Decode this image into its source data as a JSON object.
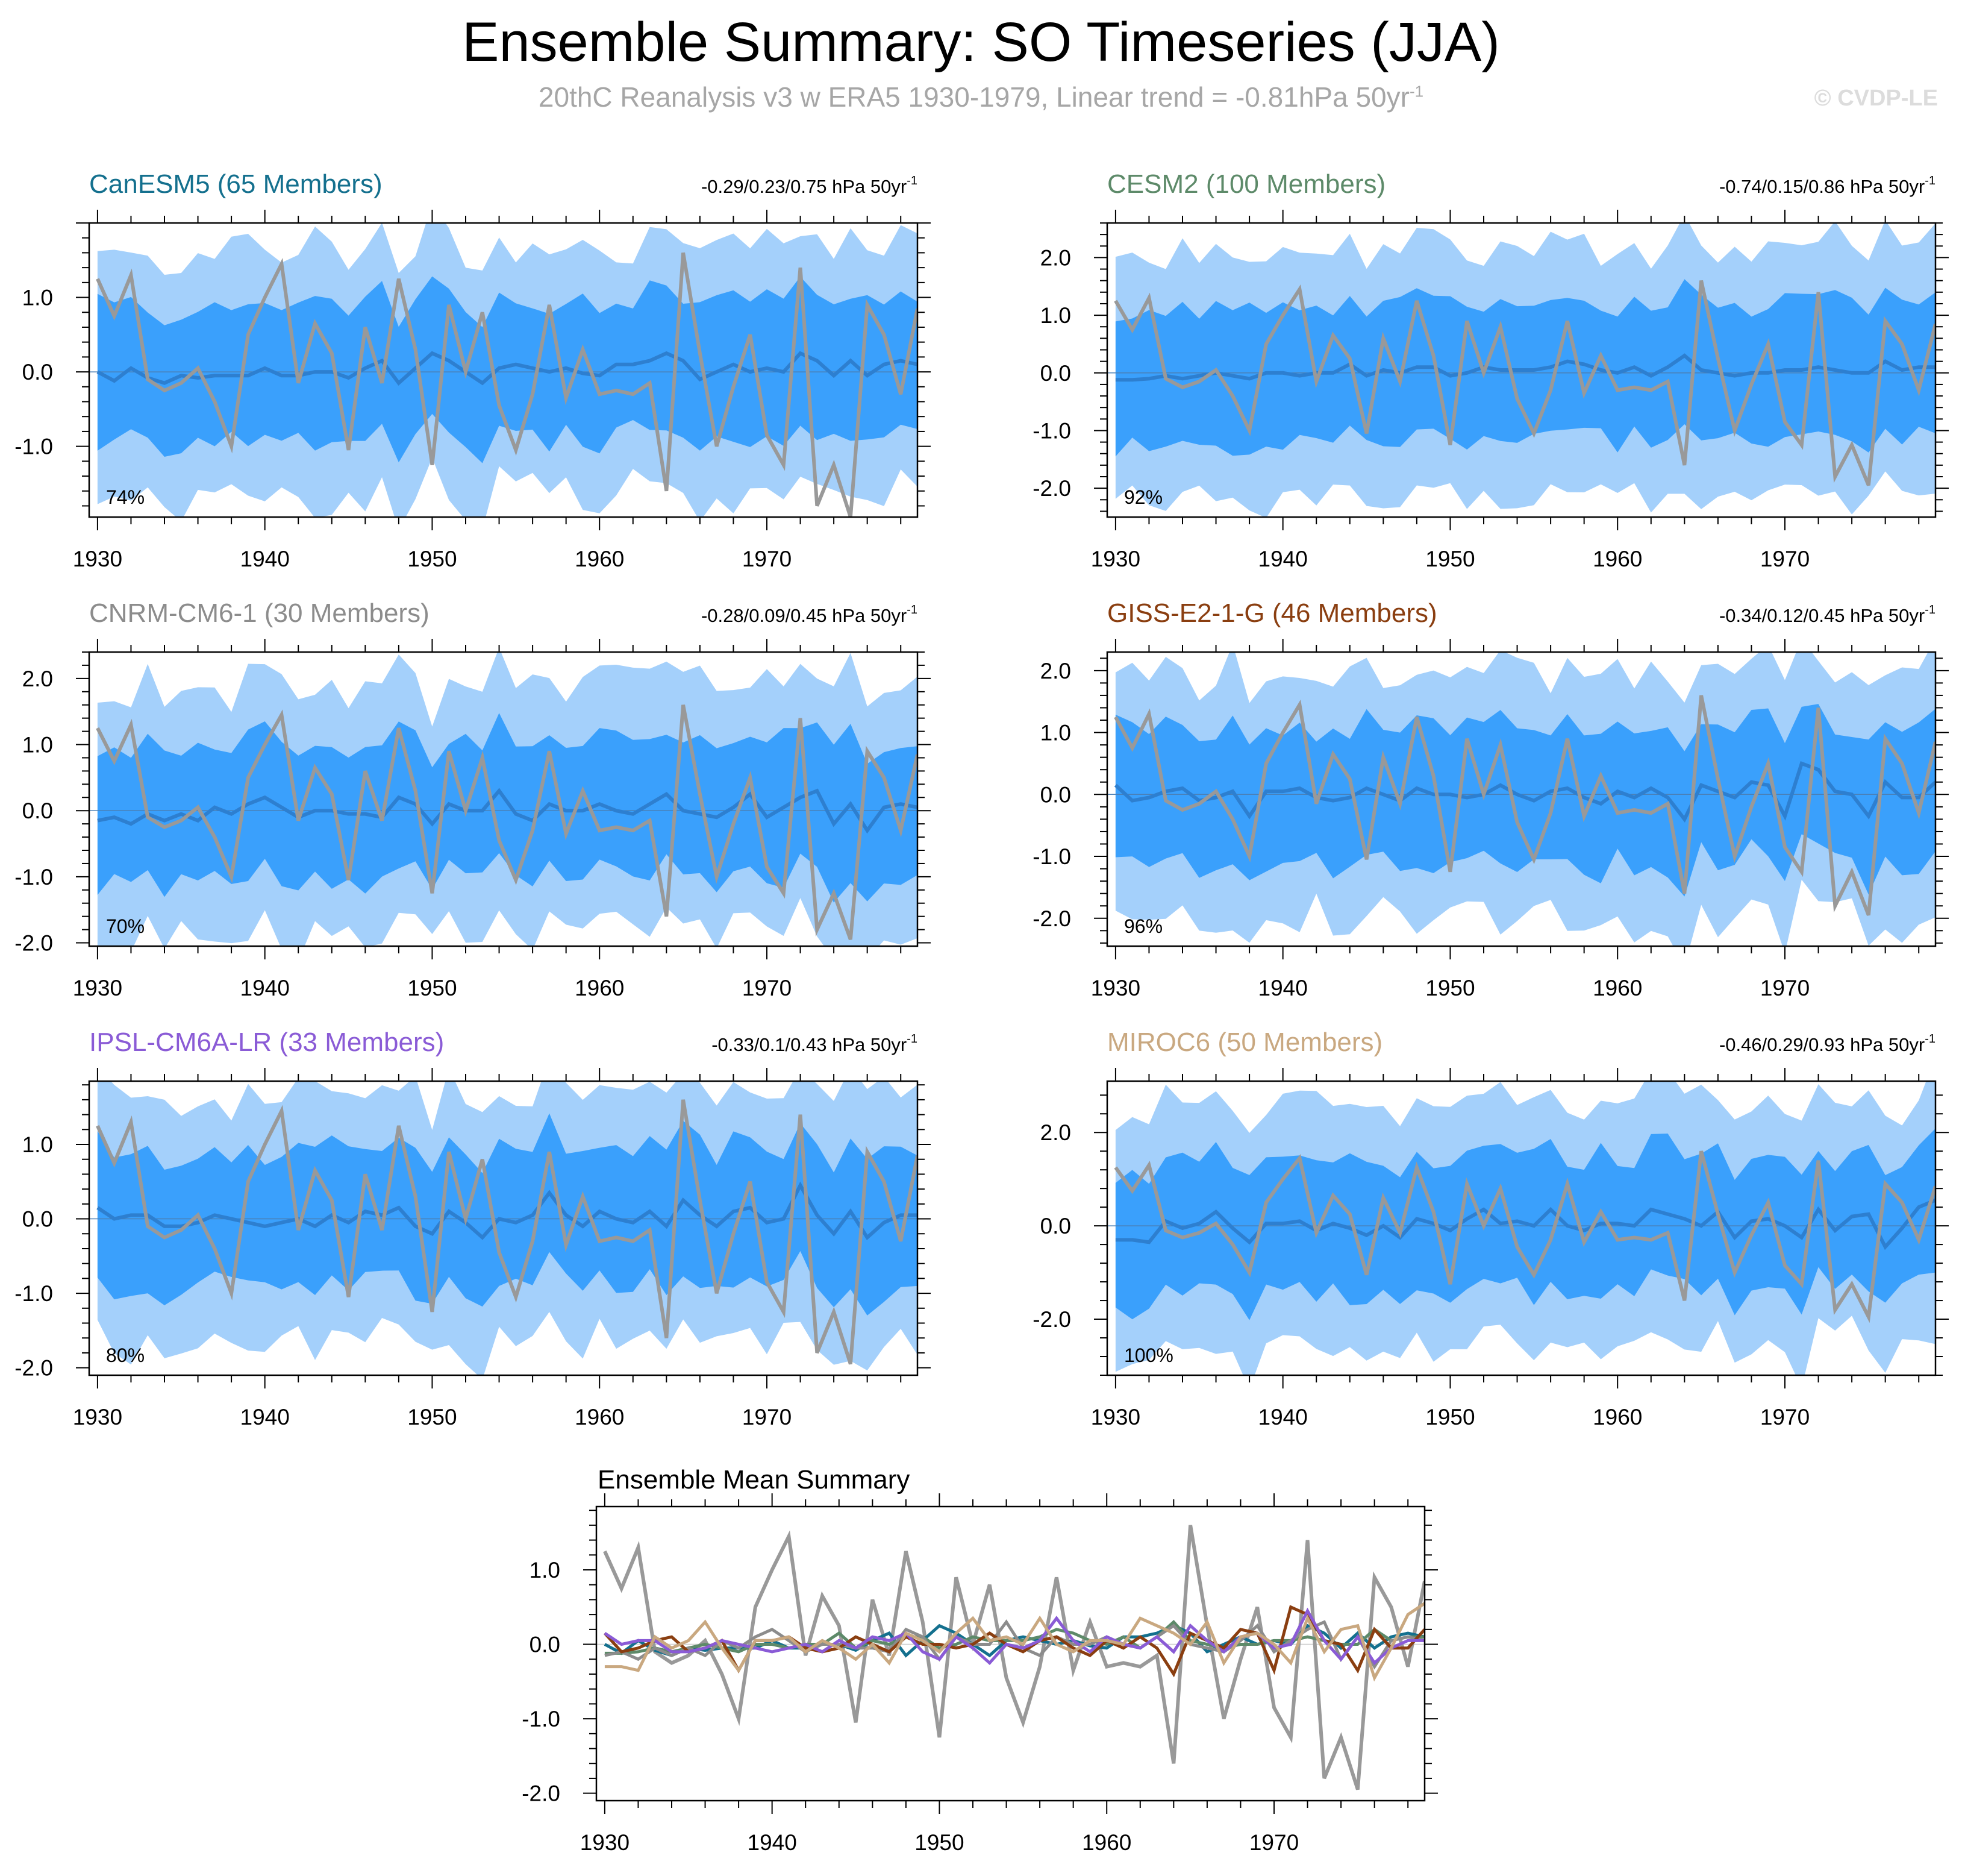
{
  "title": "Ensemble Summary: SO Timeseries (JJA)",
  "subtitle": "20thC Reanalysis v3 w ERA5 1930-1979, Linear trend = -0.81hPa 50yr",
  "subtitle_sup": "-1",
  "credit": "© CVDP-LE",
  "trend_unit": "hPa 50yr",
  "trend_unit_sup": "-1",
  "colors": {
    "outer_band": "#a4d0fb",
    "inner_band": "#3aa0fc",
    "ensemble_mean": "#2d7fd0",
    "observed": "#999999"
  },
  "chart_data": [
    {
      "type": "area",
      "model": "CanESM5 (65 Members)",
      "color": "#14708e",
      "trend": "-0.29/0.23/0.75",
      "percent": "74%",
      "ylim": [
        -1.95,
        2.0
      ],
      "yticks": [
        "1.0",
        "0.0",
        "-1.0"
      ],
      "ytick_values": [
        1,
        0,
        -1
      ],
      "xticks": [
        "1930",
        "1940",
        "1950",
        "1960",
        "1970"
      ],
      "xlim": [
        1929.5,
        1979
      ]
    },
    {
      "type": "area",
      "model": "CESM2 (100 Members)",
      "color": "#5d8a69",
      "trend": "-0.74/0.15/0.86",
      "percent": "92%",
      "ylim": [
        -2.5,
        2.6
      ],
      "yticks": [
        "2.0",
        "1.0",
        "0.0",
        "-1.0",
        "-2.0"
      ],
      "ytick_values": [
        2,
        1,
        0,
        -1,
        -2
      ],
      "xticks": [
        "1930",
        "1940",
        "1950",
        "1960",
        "1970"
      ],
      "xlim": [
        1929.5,
        1979
      ]
    },
    {
      "type": "area",
      "model": "CNRM-CM6-1 (30 Members)",
      "color": "#8c8c8c",
      "trend": "-0.28/0.09/0.45",
      "percent": "70%",
      "ylim": [
        -2.05,
        2.4
      ],
      "yticks": [
        "2.0",
        "1.0",
        "0.0",
        "-1.0",
        "-2.0"
      ],
      "ytick_values": [
        2,
        1,
        0,
        -1,
        -2
      ],
      "xticks": [
        "1930",
        "1940",
        "1950",
        "1960",
        "1970"
      ],
      "xlim": [
        1929.5,
        1979
      ]
    },
    {
      "type": "area",
      "model": "GISS-E2-1-G (46 Members)",
      "color": "#8a3e10",
      "trend": "-0.34/0.12/0.45",
      "percent": "96%",
      "ylim": [
        -2.45,
        2.3
      ],
      "yticks": [
        "2.0",
        "1.0",
        "0.0",
        "-1.0",
        "-2.0"
      ],
      "ytick_values": [
        2,
        1,
        0,
        -1,
        -2
      ],
      "xticks": [
        "1930",
        "1940",
        "1950",
        "1960",
        "1970"
      ],
      "xlim": [
        1929.5,
        1979
      ]
    },
    {
      "type": "area",
      "model": "IPSL-CM6A-LR (33 Members)",
      "color": "#8a5bd6",
      "trend": "-0.33/0.1/0.43",
      "percent": "80%",
      "ylim": [
        -2.1,
        1.85
      ],
      "yticks": [
        "1.0",
        "0.0",
        "-1.0",
        "-2.0"
      ],
      "ytick_values": [
        1,
        0,
        -1,
        -2
      ],
      "xticks": [
        "1930",
        "1940",
        "1950",
        "1960",
        "1970"
      ],
      "xlim": [
        1929.5,
        1979
      ]
    },
    {
      "type": "area",
      "model": "MIROC6 (50 Members)",
      "color": "#c9a880",
      "trend": "-0.46/0.29/0.93",
      "percent": "100%",
      "ylim": [
        -3.2,
        3.1
      ],
      "yticks": [
        "2.0",
        "0.0",
        "-2.0"
      ],
      "ytick_values": [
        2,
        0,
        -2
      ],
      "xticks": [
        "1930",
        "1940",
        "1950",
        "1960",
        "1970"
      ],
      "xlim": [
        1929.5,
        1979
      ]
    },
    {
      "type": "line",
      "title": "Ensemble Mean Summary",
      "ylim": [
        -2.1,
        1.85
      ],
      "yticks": [
        "1.0",
        "0.0",
        "-1.0",
        "-2.0"
      ],
      "ytick_values": [
        1,
        0,
        -1,
        -2
      ],
      "xticks": [
        "1930",
        "1940",
        "1950",
        "1960",
        "1970"
      ],
      "xlim": [
        1929.5,
        1979
      ]
    }
  ],
  "observed_series": {
    "name": "20thC Reanalysis v3 w ERA5",
    "start_year": 1930,
    "values": [
      1.25,
      0.75,
      1.3,
      -0.1,
      -0.25,
      -0.15,
      0.05,
      -0.4,
      -1.0,
      0.5,
      1.0,
      1.45,
      -0.15,
      0.65,
      0.25,
      -1.05,
      0.6,
      -0.15,
      1.25,
      0.3,
      -1.25,
      0.9,
      0.0,
      0.8,
      -0.45,
      -1.05,
      -0.3,
      0.9,
      -0.35,
      0.3,
      -0.3,
      -0.25,
      -0.3,
      -0.15,
      -1.6,
      1.6,
      0.25,
      -1.0,
      -0.2,
      0.5,
      -0.85,
      -1.25,
      1.4,
      -1.8,
      -1.25,
      -1.95,
      0.9,
      0.5,
      -0.3,
      0.85
    ]
  },
  "ensemble_means": [
    {
      "name": "CanESM5",
      "color": "#14708e",
      "start_year": 1930,
      "values": [
        0.0,
        -0.12,
        0.05,
        -0.08,
        -0.15,
        -0.05,
        -0.08,
        -0.05,
        -0.05,
        -0.05,
        0.05,
        -0.05,
        -0.05,
        0.0,
        0.0,
        -0.08,
        0.05,
        0.15,
        -0.15,
        0.05,
        0.25,
        0.15,
        0.0,
        -0.15,
        0.05,
        0.1,
        0.05,
        0.0,
        0.05,
        -0.02,
        -0.05,
        0.1,
        0.1,
        0.15,
        0.25,
        0.15,
        -0.1,
        0.0,
        0.1,
        0.0,
        0.05,
        0.0,
        0.25,
        0.15,
        -0.05,
        0.15,
        -0.05,
        0.1,
        0.15,
        0.1
      ]
    },
    {
      "name": "CESM2",
      "color": "#5d8a69",
      "start_year": 1930,
      "values": [
        -0.12,
        -0.12,
        -0.1,
        -0.05,
        -0.1,
        -0.05,
        0.0,
        -0.05,
        -0.1,
        0.0,
        0.0,
        -0.05,
        0.0,
        0.0,
        0.15,
        -0.05,
        0.05,
        0.0,
        0.1,
        0.1,
        -0.05,
        0.0,
        0.1,
        0.05,
        0.05,
        0.05,
        0.1,
        0.2,
        0.15,
        0.05,
        0.0,
        0.1,
        -0.05,
        0.1,
        0.3,
        0.05,
        0.0,
        -0.05,
        0.0,
        0.0,
        0.05,
        0.05,
        0.1,
        0.05,
        0.0,
        0.0,
        0.2,
        0.05,
        0.1,
        0.1
      ]
    },
    {
      "name": "CNRM-CM6-1",
      "color": "#8c8c8c",
      "start_year": 1930,
      "values": [
        -0.15,
        -0.1,
        -0.2,
        -0.05,
        -0.15,
        -0.05,
        -0.15,
        0.05,
        -0.05,
        0.1,
        0.2,
        0.05,
        -0.1,
        0.0,
        0.0,
        -0.05,
        -0.05,
        -0.1,
        0.2,
        0.1,
        -0.2,
        0.1,
        0.0,
        0.0,
        0.3,
        -0.05,
        -0.15,
        0.1,
        0.0,
        0.0,
        0.1,
        0.0,
        -0.05,
        0.1,
        0.25,
        0.0,
        -0.05,
        -0.1,
        0.05,
        0.25,
        -0.1,
        0.05,
        0.2,
        0.3,
        -0.2,
        0.1,
        -0.3,
        0.05,
        0.1,
        0.05
      ]
    },
    {
      "name": "GISS-E2-1-G",
      "color": "#8a3e10",
      "start_year": 1930,
      "values": [
        0.15,
        -0.1,
        -0.05,
        0.05,
        0.1,
        -0.1,
        -0.05,
        0.05,
        -0.35,
        0.05,
        0.05,
        0.1,
        -0.05,
        -0.1,
        -0.05,
        0.1,
        0.0,
        -0.1,
        0.1,
        0.0,
        0.0,
        -0.05,
        0.0,
        0.15,
        0.0,
        -0.1,
        0.05,
        0.1,
        -0.05,
        -0.15,
        0.05,
        -0.05,
        0.1,
        -0.05,
        -0.4,
        0.15,
        0.05,
        -0.05,
        0.2,
        0.15,
        -0.35,
        0.5,
        0.4,
        0.05,
        0.0,
        -0.35,
        0.2,
        -0.05,
        -0.05,
        0.2
      ]
    },
    {
      "name": "IPSL-CM6A-LR",
      "color": "#8a5bd6",
      "start_year": 1930,
      "values": [
        0.15,
        0.0,
        0.05,
        0.05,
        -0.1,
        -0.1,
        -0.05,
        0.05,
        0.0,
        -0.05,
        -0.1,
        -0.05,
        0.0,
        -0.1,
        0.05,
        -0.05,
        0.1,
        0.05,
        0.15,
        -0.1,
        -0.2,
        0.1,
        -0.05,
        -0.25,
        0.0,
        -0.05,
        0.05,
        0.35,
        0.05,
        -0.1,
        0.1,
        0.0,
        -0.05,
        0.1,
        -0.1,
        0.25,
        0.05,
        -0.1,
        0.1,
        0.15,
        -0.05,
        0.0,
        0.45,
        0.05,
        -0.2,
        0.1,
        -0.25,
        -0.05,
        0.05,
        0.05
      ]
    },
    {
      "name": "MIROC6",
      "color": "#c9a880",
      "start_year": 1930,
      "values": [
        -0.3,
        -0.3,
        -0.35,
        0.1,
        -0.05,
        0.05,
        0.3,
        -0.05,
        -0.35,
        0.05,
        0.05,
        0.1,
        -0.1,
        0.05,
        -0.05,
        -0.2,
        0.0,
        -0.25,
        0.15,
        0.05,
        -0.1,
        0.15,
        0.35,
        0.05,
        0.1,
        0.0,
        0.35,
        0.0,
        -0.1,
        0.05,
        0.05,
        0.0,
        0.35,
        0.25,
        0.15,
        0.0,
        0.3,
        -0.25,
        0.1,
        0.15,
        0.0,
        -0.25,
        0.35,
        -0.1,
        0.2,
        0.25,
        -0.45,
        -0.05,
        0.4,
        0.55
      ]
    }
  ]
}
